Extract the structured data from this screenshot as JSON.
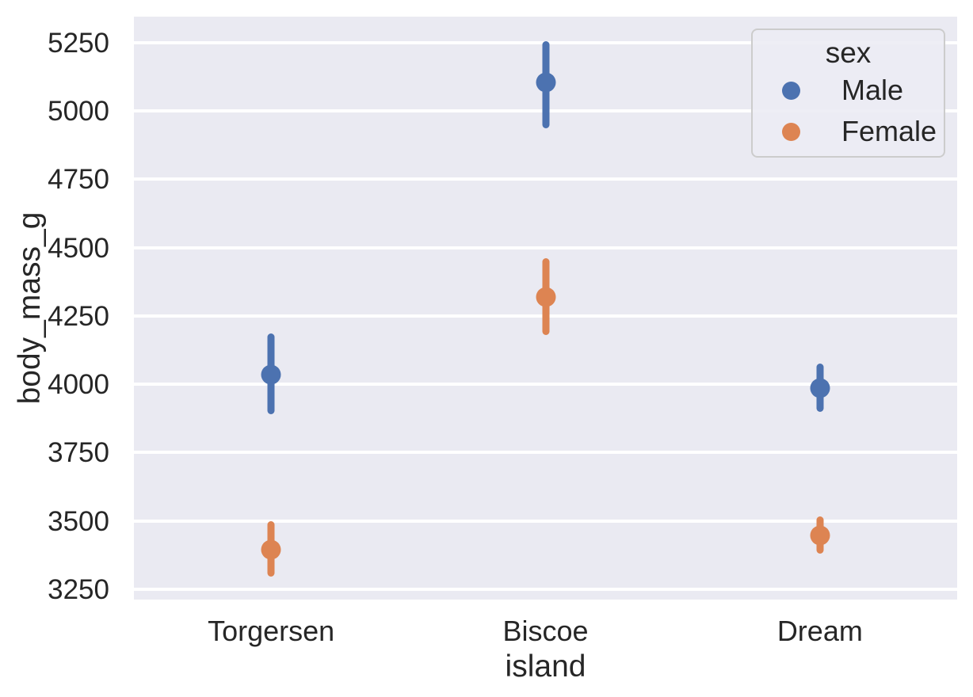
{
  "chart_data": {
    "type": "scatter",
    "subtype": "pointplot-with-error-bars",
    "title": "",
    "xlabel": "island",
    "ylabel": "body_mass_g",
    "categories": [
      "Torgersen",
      "Biscoe",
      "Dream"
    ],
    "yticks": [
      3250,
      3500,
      3750,
      4000,
      4250,
      4500,
      4750,
      5000,
      5250
    ],
    "ylim": [
      3212,
      5345
    ],
    "grid": "horizontal-white-on-gray",
    "plot_background": "#EAEAF2",
    "gridline_color": "#FFFFFF",
    "text_color": "#262626",
    "legend": {
      "title": "sex",
      "position": "upper right",
      "entries": [
        {
          "label": "Male",
          "color": "#4C72B0"
        },
        {
          "label": "Female",
          "color": "#DD8452"
        }
      ]
    },
    "series": [
      {
        "name": "Male",
        "color": "#4C72B0",
        "means": [
          4035,
          5105,
          3987
        ],
        "ci_low": [
          3890,
          4935,
          3900
        ],
        "ci_high": [
          4185,
          5255,
          4075
        ]
      },
      {
        "name": "Female",
        "color": "#DD8452",
        "means": [
          3396,
          4319,
          3446
        ],
        "ci_low": [
          3295,
          4180,
          3380
        ],
        "ci_high": [
          3500,
          4460,
          3515
        ]
      }
    ]
  }
}
